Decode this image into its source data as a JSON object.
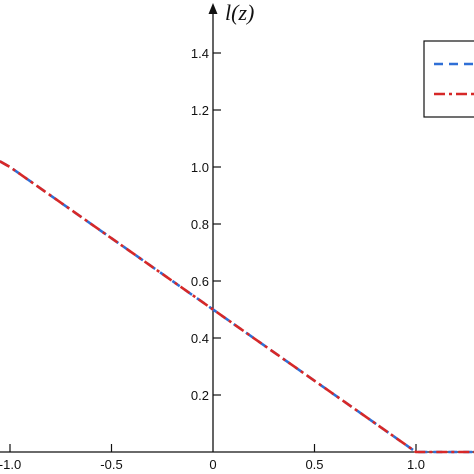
{
  "chart_data": {
    "type": "line",
    "title": "",
    "xlabel": "",
    "ylabel": "l(z)",
    "xlim": [
      -1.05,
      1.3
    ],
    "ylim": [
      0,
      1.5
    ],
    "x_ticks": [
      -1.0,
      -0.5,
      0,
      0.5,
      1.0
    ],
    "x_tick_labels": [
      "-1.0",
      "-0.5",
      "0",
      "0.5",
      "1.0"
    ],
    "y_ticks": [
      0.2,
      0.4,
      0.6,
      0.8,
      1.0,
      1.2,
      1.4
    ],
    "y_tick_labels": [
      "0.2",
      "0.4",
      "0.6",
      "0.8",
      "1.0",
      "1.2",
      "1.4"
    ],
    "grid": false,
    "legend": {
      "position": "top-right",
      "entries_visible_text": false
    },
    "series": [
      {
        "color": "#2f6fd6",
        "line_style": "dashed",
        "x": [
          -1.05,
          -1.0,
          0,
          1.0,
          1.3
        ],
        "y": [
          1.02,
          1.0,
          0.5,
          0.0,
          0.0
        ]
      },
      {
        "color": "#d62828",
        "line_style": "dash-dot",
        "x": [
          -1.05,
          -1.0,
          0,
          1.0,
          1.3
        ],
        "y": [
          1.02,
          1.0,
          0.5,
          0.0,
          0.0
        ]
      }
    ]
  }
}
